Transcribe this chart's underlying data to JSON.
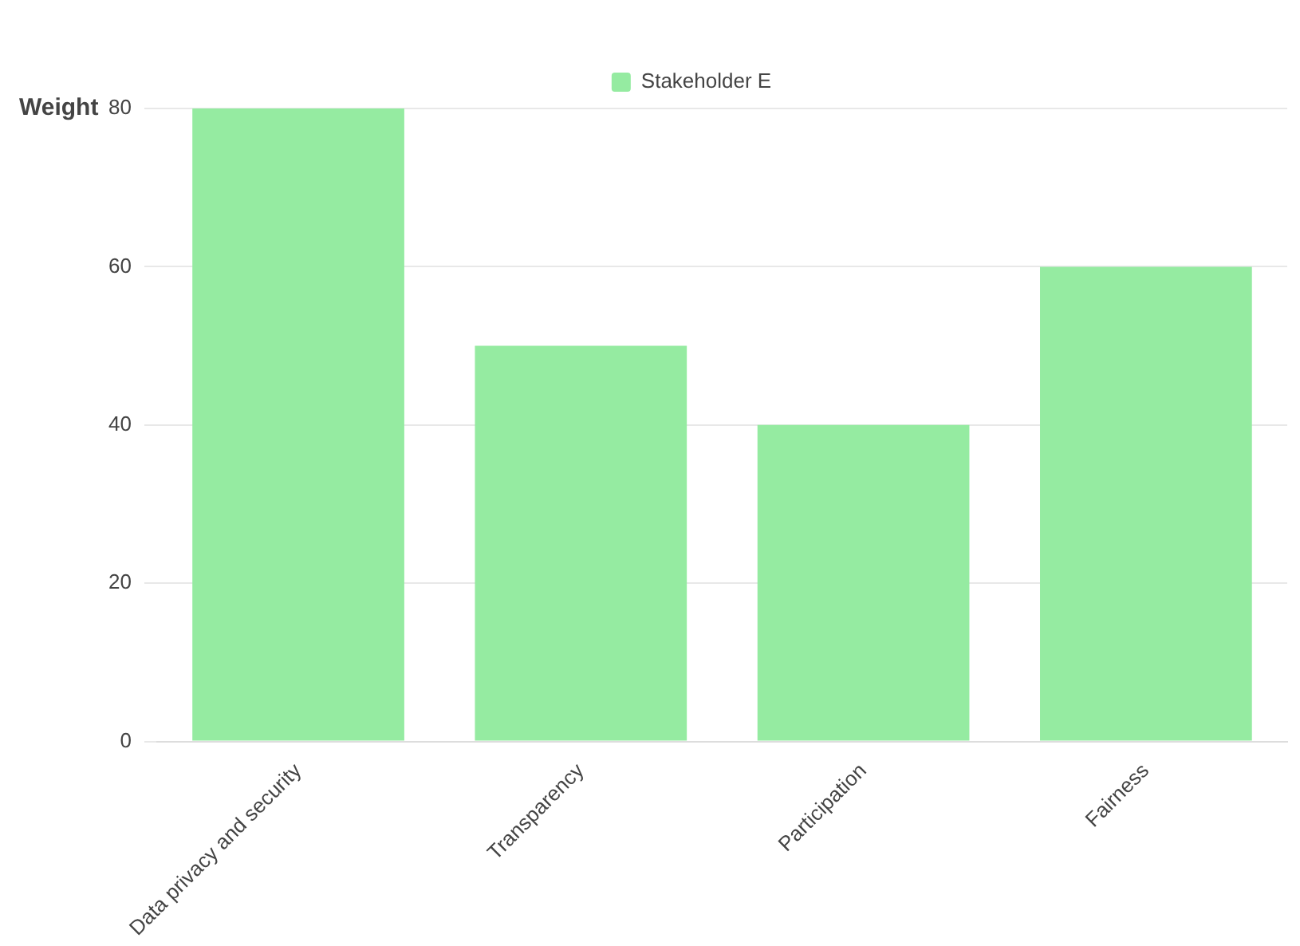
{
  "chart_data": {
    "type": "bar",
    "ylabel": "Weight",
    "categories": [
      "Data privacy and security",
      "Transparency",
      "Participation",
      "Fairness"
    ],
    "series": [
      {
        "name": "Stakeholder E",
        "color": "#95eba1",
        "values": [
          80,
          50,
          40,
          60
        ]
      }
    ],
    "ylim": [
      0,
      80
    ],
    "yticks": [
      0,
      20,
      40,
      60,
      80
    ],
    "grid": "y",
    "legend": "top"
  }
}
